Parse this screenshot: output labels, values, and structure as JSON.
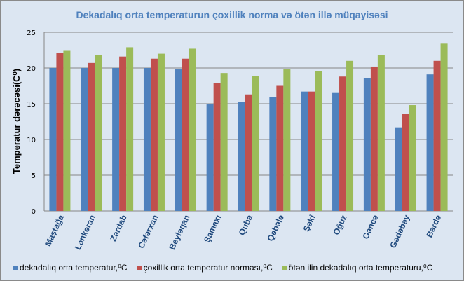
{
  "chart_data": {
    "type": "bar",
    "title": "Dekadalıq orta temperaturun çoxillik   norma və ötən illə müqayisəsi",
    "xlabel": "",
    "ylabel": "Temperatur dərəcəsi(C⁰)",
    "ylim": [
      0,
      25
    ],
    "yticks": [
      "0",
      "5",
      "10",
      "15",
      "20",
      "25"
    ],
    "grid": true,
    "legend_position": "bottom",
    "categories": [
      "Maştağa",
      "Lənkəran",
      "Zərdab",
      "Cəfərxan",
      "Beyləqan",
      "Şamaxı",
      "Quba",
      "Qəbələ",
      "Şəki",
      "Oğuz",
      "Gəncə",
      "Gədəbəy",
      "Bərdə"
    ],
    "series": [
      {
        "name": "dekadalıq orta temperatur,⁰C",
        "color": "#4f81bd",
        "values": [
          20.0,
          20.0,
          20.0,
          20.0,
          19.8,
          14.9,
          15.2,
          15.9,
          16.7,
          16.5,
          18.6,
          11.7,
          19.1
        ]
      },
      {
        "name": "çoxillik orta temperatur norması,⁰C",
        "color": "#c0504d",
        "values": [
          22.1,
          20.7,
          21.6,
          21.3,
          21.3,
          17.9,
          16.3,
          17.5,
          16.7,
          18.8,
          20.2,
          13.6,
          21.0
        ]
      },
      {
        "name": "ötən ilin dekadalıq orta temperaturu,⁰C",
        "color": "#9bbb59",
        "values": [
          22.4,
          21.8,
          22.9,
          22.0,
          22.7,
          19.3,
          18.9,
          19.8,
          19.6,
          21.0,
          21.8,
          14.8,
          23.4
        ]
      }
    ]
  }
}
